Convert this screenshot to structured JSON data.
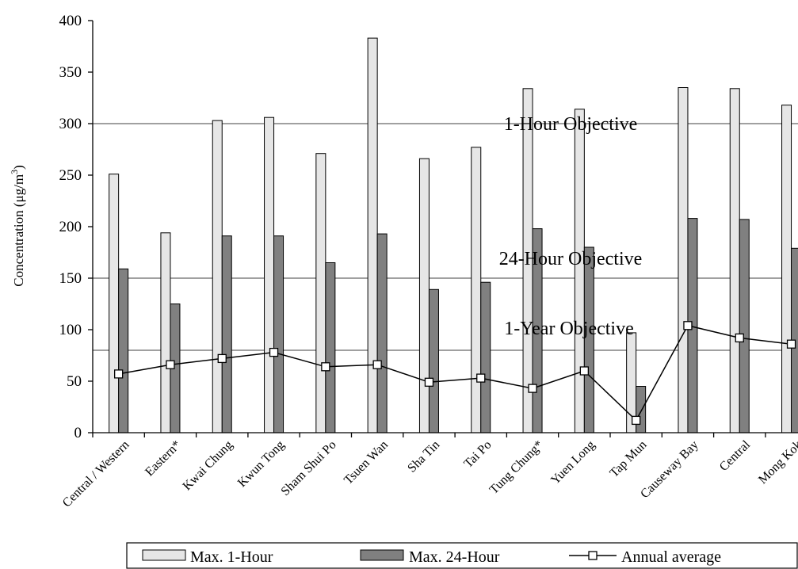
{
  "chart_data": {
    "type": "bar",
    "ylabel": "Concentration (μg/m",
    "ylabel_superscript": "3",
    "ylabel_suffix": ")",
    "ylim": [
      0,
      400
    ],
    "yticks": [
      0,
      50,
      100,
      150,
      200,
      250,
      300,
      350,
      400
    ],
    "grid": false,
    "categories": [
      "Central / Western",
      "Eastern*",
      "Kwai Chung",
      "Kwun Tong",
      "Sham Shui Po",
      "Tsuen Wan",
      "Sha Tin",
      "Tai Po",
      "Tung Chung*",
      "Yuen Long",
      "Tap Mun",
      "Causeway Bay",
      "Central",
      "Mong Kok"
    ],
    "series": [
      {
        "name": "Max. 1-Hour",
        "kind": "bar",
        "color": "#e6e6e6",
        "values": [
          251,
          194,
          303,
          306,
          271,
          383,
          266,
          277,
          334,
          314,
          97,
          335,
          334,
          318
        ]
      },
      {
        "name": "Max. 24-Hour",
        "kind": "bar",
        "color": "#808080",
        "values": [
          159,
          125,
          191,
          191,
          165,
          193,
          139,
          146,
          198,
          180,
          45,
          208,
          207,
          179
        ]
      },
      {
        "name": "Annual average",
        "kind": "line",
        "color": "#000000",
        "values": [
          57,
          66,
          72,
          78,
          64,
          66,
          49,
          53,
          43,
          60,
          12,
          104,
          92,
          86
        ]
      }
    ],
    "objectives": [
      {
        "label": "1-Hour Objective",
        "value": 300
      },
      {
        "label": "24-Hour Objective",
        "value": 150
      },
      {
        "label": "1-Year Objective",
        "value": 80
      }
    ],
    "legend_position": "bottom"
  }
}
